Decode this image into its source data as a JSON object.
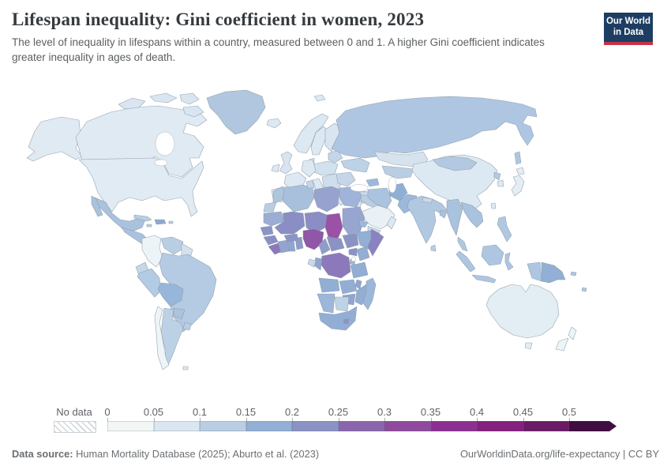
{
  "header": {
    "title": "Lifespan inequality: Gini coefficient in women, 2023",
    "subtitle": "The level of inequality in lifespans within a country, measured between 0 and 1. A higher Gini coefficient indicates greater inequality in ages of death.",
    "logo": {
      "line1": "Our World",
      "line2": "in Data",
      "bg_color": "#1d3d63",
      "accent_color": "#c53345"
    }
  },
  "legend": {
    "no_data_label": "No data",
    "tick_labels": [
      "0",
      "0.05",
      "0.1",
      "0.15",
      "0.2",
      "0.25",
      "0.3",
      "0.35",
      "0.4",
      "0.45",
      "0.5"
    ],
    "bin_colors": [
      "#f2f7f6",
      "#dae7f1",
      "#b9cee2",
      "#92afd5",
      "#8b93c5",
      "#8a66ad",
      "#8f4a9e",
      "#8d2f91",
      "#85207e",
      "#6b1a65",
      "#400e40"
    ]
  },
  "footer": {
    "source_label": "Data source:",
    "source_text": " Human Mortality Database (2025); Aburto et al. (2023)",
    "link": "OurWorldinData.org/life-expectancy",
    "separator": " | ",
    "license": "CC BY"
  },
  "map": {
    "sea_color": "#ffffff",
    "border_color": "#8a97a5",
    "regions": {
      "alaska": "#dfeaf3",
      "canada": "#dfeaf3",
      "arctic-islands": "#d9e6f1",
      "greenland": "#b1c7e0",
      "iceland": "#dce8f2",
      "us": "#e1ebf3",
      "mexico": "#a9c2de",
      "centralamerica": "#a9c2de",
      "cuba": "#b9cee2",
      "hispaniola": "#8ea9d0",
      "jamaica": "#b9cee2",
      "puertorico": "#b9cee2",
      "colombia": "#edf4f7",
      "venezuela": "#b9cee2",
      "guyanas": "#d5e2ee",
      "ecuador": "#c6d7e9",
      "peru": "#b3cbe3",
      "brazil": "#b4cbe3",
      "bolivia": "#98b6d9",
      "paraguay": "#aac3de",
      "uruguay": "#b9cee2",
      "argentina": "#bdd1e6",
      "chile": "#eef5f8",
      "falklands": "#dce8f2",
      "uk": "#d8e5f0",
      "ireland": "#dce8f2",
      "norway": "#dce8f2",
      "sweden": "#dce8f2",
      "finland": "#d9e6f1",
      "denmark": "#dce8f2",
      "baltics": "#c4d6e8",
      "poland": "#d2e1ee",
      "germany": "#dce8f2",
      "france": "#dce8f2",
      "iberia": "#e9f1f6",
      "italy": "#dde9f2",
      "balkans": "#cfdeed",
      "greece": "#dce8f2",
      "romania": "#c4d6e8",
      "ukraine": "#bed2e7",
      "turkey": "#c7d8ea",
      "russia": "#aec6e1",
      "svalbard": "#dce8f2",
      "kazakhstan": "#d6e3ef",
      "uzbekistan": "#b9cee2",
      "kyrgyzstan": "#a9c2de",
      "caucasus": "#9db9da",
      "iraq": "#b9cee2",
      "jordan": "#dce8f2",
      "saudi": "#e9f1f6",
      "yemen": "#c8d9ea",
      "oman": "#dce8f2",
      "iran": "#abc3de",
      "afghanistan": "#8fb0d6",
      "pakistan": "#9cb8da",
      "india": "#b0c8e0",
      "srilanka": "#b9cee2",
      "nepal": "#c8d9ea",
      "bangladesh": "#a9c2de",
      "china": "#dde9f2",
      "mongolia": "#b3c9e1",
      "northkorea": "#b3c9e1",
      "southkorea": "#dce8f2",
      "japan": "#e3edf4",
      "taiwan": "#dce8f2",
      "myanmar": "#a9c2de",
      "vietnam": "#a9c2de",
      "malaysia": "#b0c8e0",
      "indonesia": "#aec6e1",
      "philippines": "#b0c8e0",
      "png": "#92afd5",
      "pacific": "#aec6e1",
      "australia": "#e3edf4",
      "newzealand": "#edf4f7",
      "morocco": "#aec5de",
      "wsahara": "#b9cee2",
      "algeria": "#a9c0dc",
      "tunisia": "#c3d5e8",
      "libya": "#97a3ce",
      "egypt": "#9fb4d8",
      "mauritania": "#9badd4",
      "mali": "#8a8ec4",
      "niger": "#8a8ec4",
      "chad": "#9b51a6",
      "sudan": "#96a6d0",
      "eritrea": "#9cb8da",
      "senegal": "#8a94c6",
      "guinea": "#8a90c3",
      "sierraleone": "#8b79ba",
      "ivorycoast": "#92a5d0",
      "ghana": "#8fa6d1",
      "togo": "#8f9cca",
      "burkina": "#8a94c6",
      "nigeria": "#9156a7",
      "cameroon": "#8f9cca",
      "car": "#8b93c5",
      "southsudan": "#8b93c5",
      "ethiopia": "#92afd5",
      "somalia": "#8a82c3",
      "uganda": "#8b93c5",
      "kenya": "#92aed4",
      "drc": "#8b79bb",
      "congo": "#92a5d0",
      "gabon": "#c8d9ea",
      "rwanda": "#9cb8da",
      "tanzania": "#92aed4",
      "angola": "#92aed4",
      "zambia": "#92aed4",
      "malawi": "#8fa6d1",
      "mozambique": "#92aed4",
      "zimbabwe": "#8fa6d1",
      "namibia": "#9cb7da",
      "botswana": "#bfd3e6",
      "southafrica": "#92aed4",
      "lesotho": "#8b93c5",
      "madagascar": "#9cb7da"
    }
  }
}
